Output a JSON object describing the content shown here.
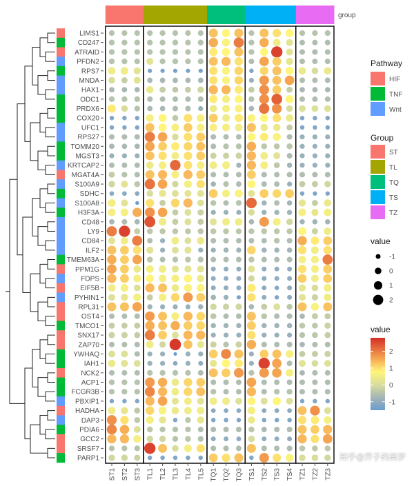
{
  "chart_data": {
    "type": "heatmap",
    "subtype": "dot-heatmap",
    "columns": [
      "ST1",
      "ST2",
      "ST3",
      "TL1",
      "TL2",
      "TL3",
      "TL4",
      "TL5",
      "TQ1",
      "TQ2",
      "TQ3",
      "TS1",
      "TS2",
      "TS3",
      "TS4",
      "TZ1",
      "TZ2",
      "TZ3"
    ],
    "column_groups": [
      "ST",
      "ST",
      "ST",
      "TL",
      "TL",
      "TL",
      "TL",
      "TL",
      "TQ",
      "TQ",
      "TQ",
      "TS",
      "TS",
      "TS",
      "TS",
      "TZ",
      "TZ",
      "TZ"
    ],
    "group_bar_label": "group",
    "rows": [
      "LIMS1",
      "CD247",
      "ATRAID",
      "PFDN2",
      "RPS7",
      "MNDA",
      "HAX1",
      "ODC1",
      "PRDX6",
      "COX20",
      "UFC1",
      "RPS27",
      "TOMM20",
      "MGST3",
      "KRTCAP2",
      "MGAT4A",
      "S100A9",
      "SDHC",
      "S100A8",
      "H3F3A",
      "CD48",
      "LY9",
      "CD84",
      "ILF2",
      "TMEM63A",
      "PPM1G",
      "FDPS",
      "EIF5B",
      "PYHIN1",
      "RPL31",
      "OST4",
      "TMCO1",
      "SNX17",
      "ZAP70",
      "YWHAQ",
      "IAH1",
      "NCK2",
      "ACP1",
      "FCGR3B",
      "PBXIP1",
      "HADHA",
      "DAP3",
      "PDIA6",
      "GCC2",
      "SRSF7",
      "PARP1"
    ],
    "row_pathway": [
      "HIF",
      "TNF",
      "HIF",
      "Wnt",
      "TNF",
      "Wnt",
      "Wnt",
      "TNF",
      "TNF",
      "TNF",
      "Wnt",
      "Wnt",
      "TNF",
      "TNF",
      "Wnt",
      "HIF",
      "Wnt",
      "TNF",
      "Wnt",
      "TNF",
      "Wnt",
      "Wnt",
      "Wnt",
      "Wnt",
      "TNF",
      "HIF",
      "Wnt",
      "HIF",
      "Wnt",
      "HIF",
      "HIF",
      "TNF",
      "HIF",
      "HIF",
      "TNF",
      "TNF",
      "HIF",
      "TNF",
      "TNF",
      "Wnt",
      "HIF",
      "Wnt",
      "TNF",
      "HIF",
      "HIF",
      "TNF"
    ],
    "values": [
      [
        -0.5,
        -0.5,
        -0.5,
        -0.5,
        -0.5,
        -0.5,
        -0.5,
        -0.5,
        1.3,
        0.8,
        1.3,
        -0.5,
        1.3,
        1.0,
        0.8,
        -0.5,
        -0.5,
        -0.5
      ],
      [
        -0.5,
        -0.5,
        -0.5,
        -0.5,
        -0.5,
        -0.5,
        -0.5,
        -0.5,
        1.5,
        0.7,
        2.0,
        -0.5,
        1.5,
        0.5,
        0.2,
        -0.6,
        -0.6,
        -0.6
      ],
      [
        -0.5,
        -0.5,
        -0.5,
        -0.5,
        -0.5,
        -0.5,
        -0.5,
        -0.5,
        0.9,
        0.8,
        1.3,
        -0.5,
        0.8,
        2.6,
        0.2,
        -0.6,
        -0.6,
        -0.6
      ],
      [
        -0.5,
        -0.5,
        -0.5,
        0.2,
        -0.5,
        -0.5,
        -0.5,
        -0.5,
        1.3,
        1.4,
        1.0,
        -0.6,
        1.6,
        1.2,
        0.3,
        -0.6,
        -0.6,
        -0.6
      ],
      [
        0.5,
        0.5,
        0.2,
        -1.3,
        -1.3,
        -1.3,
        -1.3,
        -1.3,
        1.0,
        0.7,
        1.1,
        -1.2,
        1.1,
        1.3,
        0.8,
        0.4,
        0.0,
        0.4
      ],
      [
        0.0,
        -0.3,
        0.2,
        -0.7,
        -0.7,
        -0.7,
        -0.7,
        -0.7,
        1.0,
        0.7,
        1.1,
        -0.9,
        1.7,
        1.3,
        1.6,
        -0.6,
        -0.6,
        -0.6
      ],
      [
        -0.7,
        -0.7,
        -0.7,
        0.4,
        -0.3,
        -0.4,
        -0.3,
        -0.1,
        1.4,
        1.4,
        0.9,
        -0.3,
        1.8,
        1.2,
        -0.3,
        -0.7,
        -0.7,
        -0.7
      ],
      [
        -0.5,
        -0.5,
        -0.5,
        -0.6,
        -0.6,
        -0.6,
        -0.6,
        -0.6,
        0.9,
        0.6,
        0.8,
        -0.5,
        1.8,
        2.3,
        0.8,
        -0.6,
        -0.6,
        -0.6
      ],
      [
        0.9,
        0.0,
        -0.5,
        -0.7,
        -0.7,
        -0.6,
        -0.6,
        -0.9,
        0.4,
        0.6,
        0.7,
        -0.7,
        2.1,
        1.8,
        0.0,
        0.1,
        0.1,
        0.1
      ],
      [
        -1.2,
        -1.2,
        -1.2,
        0.6,
        0.8,
        -0.4,
        1.0,
        0.6,
        1.2,
        0.5,
        0.9,
        0.7,
        0.8,
        1.0,
        0.4,
        -1.2,
        -1.2,
        -1.2
      ],
      [
        -1.2,
        -1.2,
        -1.2,
        1.3,
        0.8,
        0.6,
        1.2,
        0.6,
        0.6,
        0.6,
        0.5,
        1.3,
        0.4,
        0.4,
        -0.3,
        -1.2,
        -1.2,
        -1.2
      ],
      [
        -0.6,
        -0.6,
        -0.6,
        2.0,
        1.6,
        0.0,
        1.0,
        1.2,
        -0.6,
        -0.6,
        -0.6,
        0.8,
        0.9,
        0.7,
        -0.6,
        -0.9,
        -0.9,
        -0.9
      ],
      [
        -0.7,
        -0.7,
        -0.7,
        1.6,
        1.2,
        0.9,
        1.1,
        1.3,
        -0.6,
        -0.5,
        -0.5,
        1.5,
        -0.4,
        -0.4,
        -0.4,
        -0.9,
        -0.9,
        -0.9
      ],
      [
        -0.9,
        -0.9,
        -0.9,
        1.3,
        1.0,
        0.5,
        1.0,
        1.2,
        -0.2,
        -0.2,
        -0.2,
        1.4,
        0.5,
        0.2,
        -0.6,
        -0.9,
        -0.9,
        -0.9
      ],
      [
        -0.6,
        -0.6,
        -0.6,
        0.4,
        0.6,
        2.2,
        1.0,
        0.6,
        0.5,
        0.6,
        -0.8,
        1.4,
        0.6,
        -0.4,
        -0.8,
        -0.9,
        -0.9,
        -0.9
      ],
      [
        -0.3,
        -0.5,
        -0.6,
        1.3,
        1.4,
        0.6,
        1.4,
        1.2,
        -0.6,
        -0.6,
        -0.6,
        1.2,
        -0.6,
        -0.6,
        -0.6,
        -0.6,
        -0.6,
        -0.6
      ],
      [
        -0.1,
        0.2,
        -0.4,
        2.1,
        1.6,
        -0.1,
        0.6,
        1.0,
        -0.8,
        -0.5,
        -0.6,
        0.8,
        -0.6,
        -0.6,
        -0.9,
        -0.3,
        -0.3,
        -0.1
      ],
      [
        -1.1,
        -1.1,
        -1.1,
        0.0,
        0.3,
        0.1,
        0.2,
        0.2,
        1.2,
        0.6,
        0.7,
        0.2,
        1.2,
        1.1,
        1.2,
        -1.2,
        -1.2,
        -1.2
      ],
      [
        0.6,
        0.2,
        -1.6,
        1.0,
        -0.3,
        1.1,
        1.4,
        0.1,
        -0.5,
        -0.6,
        -0.5,
        2.2,
        -0.8,
        -0.6,
        -0.8,
        0.3,
        -0.3,
        0.4
      ],
      [
        0.6,
        0.6,
        1.5,
        1.8,
        1.6,
        -0.3,
        0.1,
        -0.2,
        -0.9,
        -0.9,
        -0.9,
        0.0,
        -0.9,
        -0.8,
        -0.8,
        0.6,
        0.3,
        0.6
      ],
      [
        -0.7,
        -0.6,
        -0.7,
        2.4,
        0.5,
        -0.3,
        0.1,
        -0.3,
        0.2,
        0.5,
        0.5,
        -0.7,
        1.7,
        0.6,
        -0.1,
        -0.8,
        -0.8,
        -0.8
      ],
      [
        2.0,
        2.6,
        -0.3,
        -0.4,
        -0.4,
        -0.4,
        -0.4,
        -0.4,
        -0.4,
        -0.4,
        -0.4,
        -0.4,
        -0.4,
        -0.4,
        -0.4,
        0.8,
        -0.2,
        0.5
      ],
      [
        0.2,
        0.5,
        2.0,
        -0.6,
        -0.9,
        0.5,
        0.1,
        0.4,
        -0.6,
        -0.6,
        -0.6,
        -0.6,
        -0.6,
        -0.5,
        -0.6,
        1.5,
        0.9,
        1.2
      ],
      [
        1.3,
        1.2,
        1.0,
        0.2,
        -0.9,
        0.1,
        0.2,
        -0.9,
        -0.9,
        -0.8,
        -0.8,
        1.1,
        -0.8,
        -0.8,
        -0.8,
        1.0,
        0.5,
        1.0
      ],
      [
        1.5,
        1.2,
        1.6,
        -0.4,
        -0.6,
        -0.5,
        -0.4,
        -0.5,
        -0.6,
        -0.6,
        -0.6,
        -0.4,
        -0.6,
        -0.6,
        -0.6,
        0.6,
        0.6,
        2.0
      ],
      [
        1.6,
        1.2,
        0.4,
        0.6,
        0.5,
        0.2,
        0.2,
        0.2,
        -1.0,
        -1.0,
        -1.0,
        0.2,
        -1.0,
        -1.0,
        -1.0,
        1.0,
        0.6,
        1.2
      ],
      [
        1.4,
        1.2,
        0.6,
        0.8,
        0.6,
        0.6,
        0.8,
        0.4,
        -1.0,
        -1.0,
        -1.0,
        -0.1,
        -1.0,
        -1.0,
        -1.0,
        1.2,
        0.5,
        1.2
      ],
      [
        0.5,
        0.6,
        0.1,
        1.4,
        1.3,
        0.4,
        0.7,
        0.7,
        -1.0,
        -1.0,
        -1.0,
        0.9,
        -1.1,
        -1.2,
        -1.0,
        0.3,
        0.0,
        0.6
      ],
      [
        0.1,
        0.3,
        0.6,
        -0.3,
        0.6,
        1.1,
        1.7,
        1.2,
        -0.8,
        -0.9,
        -1.3,
        1.0,
        -1.0,
        -1.2,
        -1.0,
        0.2,
        -0.2,
        0.5
      ],
      [
        1.3,
        1.3,
        1.6,
        -0.8,
        -0.9,
        -0.9,
        -0.9,
        -0.8,
        -0.1,
        -0.2,
        -0.1,
        -0.7,
        -0.3,
        0.1,
        -0.4,
        1.3,
        0.7,
        1.3
      ],
      [
        -0.6,
        -0.6,
        -0.6,
        1.7,
        1.3,
        0.6,
        1.4,
        1.1,
        -0.4,
        -0.6,
        -0.6,
        1.3,
        -0.4,
        -0.6,
        -0.6,
        -0.7,
        -0.3,
        -0.3
      ],
      [
        -0.3,
        -0.3,
        -0.3,
        1.5,
        1.3,
        1.5,
        1.2,
        1.1,
        -0.8,
        -0.8,
        -0.8,
        1.2,
        -0.8,
        -0.8,
        -0.8,
        -0.4,
        -0.4,
        -0.2
      ],
      [
        -0.2,
        -0.2,
        -0.3,
        2.0,
        1.2,
        0.1,
        1.4,
        1.4,
        -0.9,
        -0.9,
        -0.9,
        1.0,
        -0.9,
        -0.9,
        -0.9,
        -0.5,
        -0.4,
        -0.3
      ],
      [
        -0.6,
        -0.6,
        -0.6,
        0.5,
        -0.1,
        2.7,
        1.3,
        0.3,
        -0.2,
        -0.5,
        -0.2,
        1.5,
        -0.6,
        -0.6,
        -0.6,
        -0.7,
        -0.6,
        -0.6
      ],
      [
        0.1,
        0.1,
        -0.6,
        -0.9,
        -0.9,
        -1.7,
        -0.9,
        -0.9,
        1.2,
        1.9,
        1.3,
        -0.9,
        1.2,
        1.3,
        0.6,
        -0.3,
        -0.3,
        -0.2
      ],
      [
        0.4,
        0.2,
        0.1,
        -0.9,
        -0.9,
        -1.1,
        -0.9,
        -1.0,
        0.3,
        0.8,
        0.9,
        -0.9,
        2.6,
        1.6,
        -0.6,
        0.2,
        0.0,
        0.1
      ],
      [
        -0.6,
        -0.6,
        -0.6,
        -0.5,
        -0.5,
        -0.5,
        -0.5,
        -0.6,
        1.3,
        1.2,
        1.7,
        -0.5,
        1.7,
        1.6,
        0.6,
        -0.7,
        -0.6,
        -0.6
      ],
      [
        -0.5,
        -0.5,
        -0.5,
        1.7,
        1.5,
        0.4,
        1.1,
        1.2,
        -0.6,
        -0.6,
        -0.6,
        1.6,
        -0.6,
        -0.6,
        -0.6,
        -0.6,
        -0.6,
        -0.6
      ],
      [
        -0.5,
        -0.5,
        -0.5,
        1.9,
        1.4,
        0.5,
        1.1,
        1.3,
        -0.5,
        -0.6,
        -0.6,
        1.4,
        -0.6,
        -0.5,
        -0.5,
        -0.6,
        -0.6,
        -0.6
      ],
      [
        -1.2,
        -1.2,
        -1.2,
        1.4,
        1.6,
        0.2,
        0.5,
        0.2,
        0.5,
        0.5,
        0.1,
        0.8,
        0.1,
        0.8,
        0.1,
        -1.2,
        -1.2,
        -1.2
      ],
      [
        0.5,
        0.3,
        -0.4,
        1.1,
        0.7,
        0.4,
        0.5,
        0.5,
        -1.1,
        -1.1,
        -1.1,
        0.6,
        -1.1,
        -1.1,
        -1.1,
        1.3,
        1.8,
        0.1
      ],
      [
        1.8,
        1.0,
        -0.4,
        0.6,
        0.3,
        -1.2,
        -0.4,
        0.3,
        -1.2,
        -1.2,
        -1.2,
        0.4,
        -1.2,
        -1.2,
        -1.2,
        1.0,
        0.9,
        0.6
      ],
      [
        1.9,
        1.5,
        0.1,
        -0.4,
        -0.5,
        -0.5,
        -0.5,
        -0.6,
        -0.6,
        -0.6,
        -0.6,
        -0.4,
        -0.7,
        -0.6,
        -0.6,
        1.3,
        1.2,
        1.4
      ],
      [
        1.4,
        1.4,
        0.6,
        -0.1,
        -0.1,
        -0.5,
        -0.4,
        -0.5,
        -1.0,
        -1.0,
        -1.0,
        0.0,
        -1.0,
        -1.0,
        -1.0,
        1.4,
        1.0,
        1.6
      ],
      [
        -0.5,
        -0.5,
        -0.5,
        2.6,
        1.3,
        0.0,
        0.6,
        1.0,
        -0.6,
        -0.6,
        -0.6,
        1.3,
        -0.6,
        -0.6,
        -0.6,
        -0.4,
        -0.4,
        -0.4
      ],
      [
        -0.1,
        -0.1,
        -0.2,
        -1.2,
        -1.2,
        -1.2,
        -1.2,
        -1.2,
        1.2,
        1.0,
        1.3,
        -1.2,
        1.7,
        1.0,
        0.7,
        0.0,
        0.0,
        -0.1
      ]
    ],
    "legends": {
      "pathway": {
        "title": "Pathway",
        "items": [
          "HIF",
          "TNF",
          "Wnt"
        ],
        "colors": [
          "#F8766D",
          "#00BA38",
          "#619CFF"
        ]
      },
      "group": {
        "title": "Group",
        "items": [
          "ST",
          "TL",
          "TQ",
          "TS",
          "TZ"
        ],
        "colors": [
          "#F8766D",
          "#A3A500",
          "#00BF7D",
          "#00B0F6",
          "#E76BF3"
        ]
      },
      "size": {
        "title": "value",
        "breaks": [
          -1,
          0,
          1,
          2
        ]
      },
      "color": {
        "title": "value",
        "breaks": [
          2,
          1,
          0,
          -1
        ],
        "range": [
          -1.5,
          2.8
        ],
        "low": "#6A9BD0",
        "mid": "#FFF57A",
        "high": "#D42E26"
      }
    },
    "row_dendrogram": true,
    "legend_position": "right"
  },
  "watermark": "知乎@芥子的美梦"
}
